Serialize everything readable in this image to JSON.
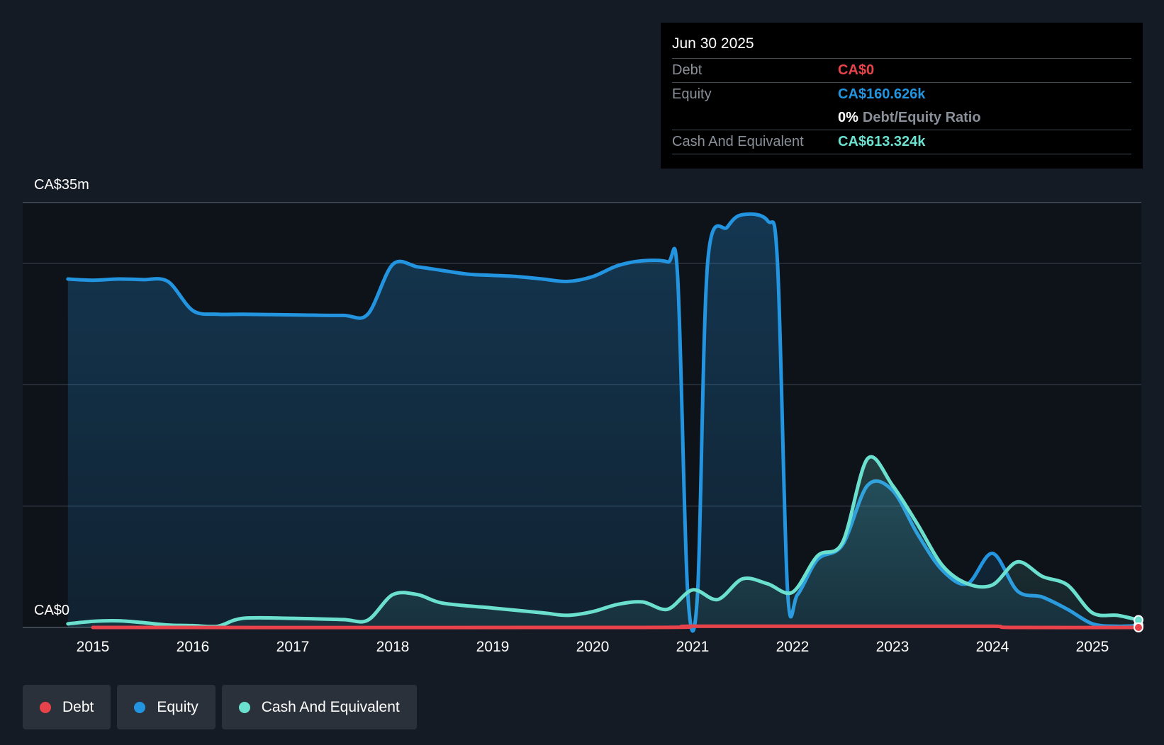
{
  "tooltip": {
    "date": "Jun 30 2025",
    "debt_label": "Debt",
    "debt_value": "CA$0",
    "equity_label": "Equity",
    "equity_value": "CA$160.626k",
    "ratio_value": "0%",
    "ratio_label": "Debt/Equity Ratio",
    "cash_label": "Cash And Equivalent",
    "cash_value": "CA$613.324k"
  },
  "legend": {
    "debt": "Debt",
    "equity": "Equity",
    "cash": "Cash And Equivalent"
  },
  "colors": {
    "background": "#151b24",
    "plot_background": "#0e1219",
    "debt": "#e8424b",
    "equity": "#2394df",
    "cash": "#6be0cf",
    "grid": "#2f3640"
  },
  "chart_data": {
    "type": "area",
    "y_top_label": "CA$35m",
    "y_bottom_label": "CA$0",
    "ylim": [
      0,
      35
    ],
    "y_unit": "CA$m",
    "x_ticks": [
      "2015",
      "2016",
      "2017",
      "2018",
      "2019",
      "2020",
      "2021",
      "2022",
      "2023",
      "2024",
      "2025"
    ],
    "xlim": [
      2014.78,
      2025.5
    ],
    "grid": true,
    "legend_position": "bottom-left",
    "series": [
      {
        "name": "Debt",
        "points": [
          [
            2015.0,
            0
          ],
          [
            2020.5,
            0
          ],
          [
            2021.0,
            0.1
          ],
          [
            2023.0,
            0.1
          ],
          [
            2024.0,
            0.1
          ],
          [
            2024.2,
            0
          ],
          [
            2025.5,
            0
          ]
        ]
      },
      {
        "name": "Equity",
        "points": [
          [
            2014.75,
            28.7
          ],
          [
            2015.0,
            28.6
          ],
          [
            2015.25,
            28.7
          ],
          [
            2015.5,
            28.65
          ],
          [
            2015.75,
            28.5
          ],
          [
            2016.0,
            26.1
          ],
          [
            2016.25,
            25.8
          ],
          [
            2016.5,
            25.8
          ],
          [
            2017.0,
            25.75
          ],
          [
            2017.5,
            25.7
          ],
          [
            2017.75,
            25.8
          ],
          [
            2018.0,
            29.9
          ],
          [
            2018.25,
            29.7
          ],
          [
            2018.5,
            29.4
          ],
          [
            2018.75,
            29.1
          ],
          [
            2019.0,
            29.0
          ],
          [
            2019.25,
            28.9
          ],
          [
            2019.5,
            28.7
          ],
          [
            2019.75,
            28.5
          ],
          [
            2020.0,
            28.9
          ],
          [
            2020.25,
            29.8
          ],
          [
            2020.5,
            30.2
          ],
          [
            2020.75,
            30.1
          ],
          [
            2020.85,
            29.0
          ],
          [
            2020.95,
            3.0
          ],
          [
            2021.05,
            2.8
          ],
          [
            2021.15,
            30.0
          ],
          [
            2021.35,
            33.0
          ],
          [
            2021.5,
            34.0
          ],
          [
            2021.75,
            33.5
          ],
          [
            2021.85,
            30.0
          ],
          [
            2021.95,
            3.0
          ],
          [
            2022.05,
            2.7
          ],
          [
            2022.25,
            5.6
          ],
          [
            2022.5,
            6.8
          ],
          [
            2022.75,
            11.7
          ],
          [
            2023.0,
            11.3
          ],
          [
            2023.25,
            7.7
          ],
          [
            2023.5,
            4.7
          ],
          [
            2023.75,
            3.6
          ],
          [
            2024.0,
            6.1
          ],
          [
            2024.25,
            3.0
          ],
          [
            2024.5,
            2.5
          ],
          [
            2024.75,
            1.5
          ],
          [
            2025.0,
            0.3
          ],
          [
            2025.25,
            0.1
          ],
          [
            2025.5,
            0.16
          ]
        ]
      },
      {
        "name": "Cash And Equivalent",
        "points": [
          [
            2014.75,
            0.3
          ],
          [
            2015.0,
            0.5
          ],
          [
            2015.25,
            0.55
          ],
          [
            2015.5,
            0.4
          ],
          [
            2015.75,
            0.2
          ],
          [
            2016.0,
            0.15
          ],
          [
            2016.25,
            0.1
          ],
          [
            2016.5,
            0.75
          ],
          [
            2017.0,
            0.75
          ],
          [
            2017.5,
            0.65
          ],
          [
            2017.75,
            0.6
          ],
          [
            2018.0,
            2.7
          ],
          [
            2018.25,
            2.7
          ],
          [
            2018.5,
            2.0
          ],
          [
            2019.0,
            1.6
          ],
          [
            2019.5,
            1.2
          ],
          [
            2019.75,
            1.0
          ],
          [
            2020.0,
            1.3
          ],
          [
            2020.25,
            1.9
          ],
          [
            2020.5,
            2.1
          ],
          [
            2020.75,
            1.5
          ],
          [
            2021.0,
            3.1
          ],
          [
            2021.25,
            2.3
          ],
          [
            2021.5,
            4.0
          ],
          [
            2021.75,
            3.6
          ],
          [
            2022.0,
            2.9
          ],
          [
            2022.25,
            5.9
          ],
          [
            2022.5,
            7.0
          ],
          [
            2022.75,
            13.9
          ],
          [
            2023.0,
            11.7
          ],
          [
            2023.25,
            8.5
          ],
          [
            2023.5,
            5.1
          ],
          [
            2023.75,
            3.6
          ],
          [
            2024.0,
            3.5
          ],
          [
            2024.25,
            5.4
          ],
          [
            2024.5,
            4.2
          ],
          [
            2024.75,
            3.5
          ],
          [
            2025.0,
            1.2
          ],
          [
            2025.25,
            1.0
          ],
          [
            2025.5,
            0.61
          ]
        ]
      }
    ]
  }
}
